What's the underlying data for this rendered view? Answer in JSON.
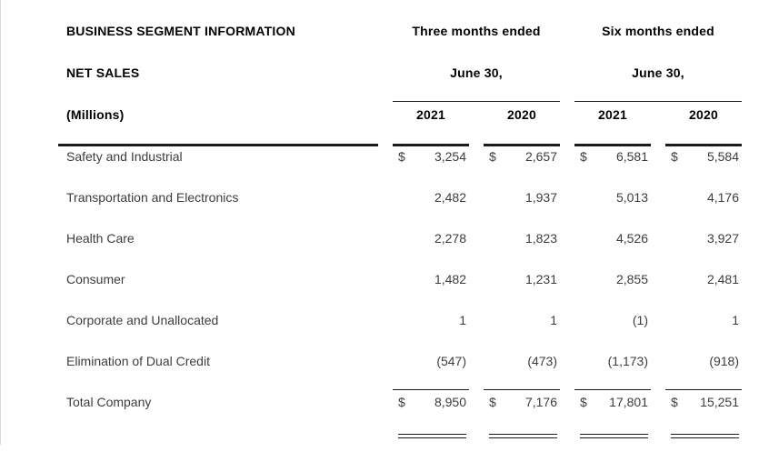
{
  "table": {
    "title_lines": [
      "BUSINESS SEGMENT INFORMATION",
      "NET SALES",
      "(Millions)"
    ],
    "currency_symbol": "$",
    "col_groups": [
      {
        "line1": "Three months ended",
        "line2": "June 30,",
        "years": [
          "2021",
          "2020"
        ]
      },
      {
        "line1": "Six months ended",
        "line2": "June 30,",
        "years": [
          "2021",
          "2020"
        ]
      }
    ],
    "rows": [
      {
        "label": "Safety and Industrial",
        "values": [
          "3,254",
          "2,657",
          "6,581",
          "5,584"
        ]
      },
      {
        "label": "Transportation and Electronics",
        "values": [
          "2,482",
          "1,937",
          "5,013",
          "4,176"
        ]
      },
      {
        "label": "Health Care",
        "values": [
          "2,278",
          "1,823",
          "4,526",
          "3,927"
        ]
      },
      {
        "label": "Consumer",
        "values": [
          "1,482",
          "1,231",
          "2,855",
          "2,481"
        ]
      },
      {
        "label": "Corporate and Unallocated",
        "values": [
          "1",
          "1",
          "(1)",
          "1"
        ]
      },
      {
        "label": "Elimination of Dual Credit",
        "values": [
          "(547)",
          "(473)",
          "(1,173)",
          "(918)"
        ]
      }
    ],
    "total_row": {
      "label": "Total Company",
      "values": [
        "8,950",
        "7,176",
        "17,801",
        "15,251"
      ]
    },
    "colors": {
      "heading_text": "#000000",
      "body_text": "#3d3d3d",
      "rule": "#1a1a1a",
      "background": "#ffffff"
    }
  }
}
